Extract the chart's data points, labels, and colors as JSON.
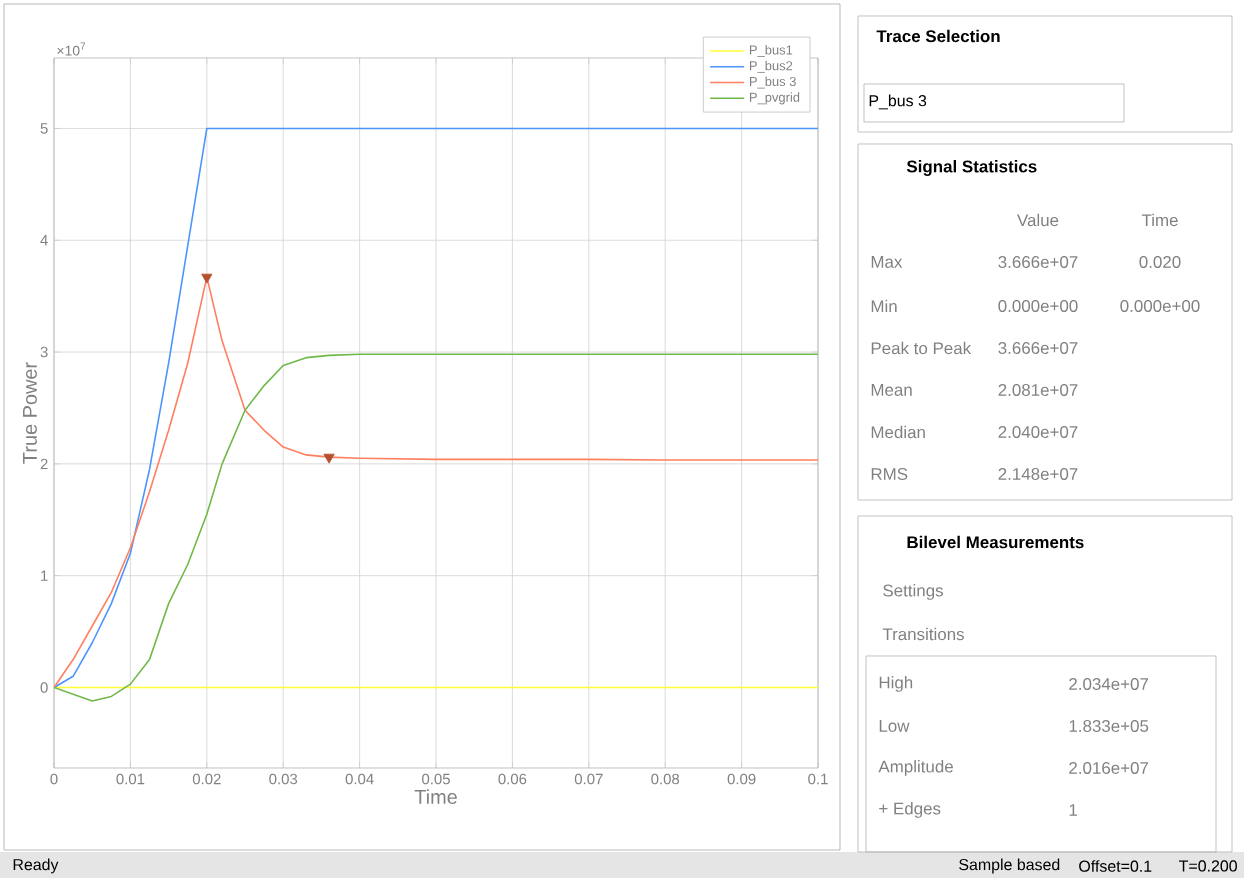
{
  "chart_data": [
    {
      "type": "line",
      "xlabel": "Time",
      "ylabel": "True Power",
      "x": [
        0,
        0.0025,
        0.005,
        0.0075,
        0.01,
        0.0125,
        0.015,
        0.0175,
        0.02,
        0.022,
        0.025,
        0.0275,
        0.03,
        0.033,
        0.036,
        0.04,
        0.05,
        0.06,
        0.07,
        0.08,
        0.09,
        0.1
      ],
      "series": [
        {
          "name": "P_bus1",
          "color": "#ffff33",
          "values": [
            0,
            0,
            0,
            0,
            0,
            0,
            0,
            0,
            0,
            0,
            0,
            0,
            0,
            0,
            0,
            0,
            0,
            0,
            0,
            0,
            0,
            0
          ]
        },
        {
          "name": "P_bus2",
          "color": "#4d94ff",
          "x": [
            0,
            0.0025,
            0.005,
            0.0075,
            0.01,
            0.0125,
            0.015,
            0.0175,
            0.02,
            0.1
          ],
          "values": [
            0,
            0.1,
            0.4,
            0.75,
            1.2,
            1.95,
            2.9,
            3.95,
            5,
            5
          ]
        },
        {
          "name": "P_bus 3",
          "color": "#ff7f5f",
          "values": [
            0,
            0.25,
            0.55,
            0.85,
            1.25,
            1.75,
            2.3,
            2.9,
            3.67,
            3.1,
            2.48,
            2.3,
            2.15,
            2.08,
            2.06,
            2.05,
            2.04,
            2.04,
            2.04,
            2.034,
            2.034,
            2.034
          ]
        },
        {
          "name": "P_pvgrid",
          "color": "#70b84a",
          "values": [
            0,
            -0.06,
            -0.12,
            -0.08,
            0.03,
            0.25,
            0.75,
            1.1,
            1.55,
            2.0,
            2.48,
            2.7,
            2.88,
            2.95,
            2.97,
            2.98,
            2.98,
            2.98,
            2.98,
            2.98,
            2.98,
            2.98
          ]
        },
        {
          "type": "scatter",
          "marker": "triangle",
          "color": "#b5502f",
          "x": [
            0.02,
            0.036
          ],
          "values": [
            3.67,
            2.06
          ]
        }
      ],
      "xlim": [
        0,
        0.1
      ],
      "ylim": [
        -0.72,
        5.63
      ],
      "xticks": [
        0,
        0.01,
        0.02,
        0.03,
        0.04,
        0.05,
        0.06,
        0.07,
        0.08,
        0.09,
        0.1
      ],
      "yticks": [
        0,
        1,
        2,
        3,
        4,
        5
      ],
      "grid": true,
      "legend": "top right",
      "annotations": [
        "×10$^{7}$"
      ]
    },
    {
      "type": "other",
      "annotations": [
        "Trace Selection",
        "P_bus 3",
        "Signal Statistics",
        "Value",
        "Time",
        "Max",
        "3.666e+07",
        "0.020",
        "Min",
        "0.000e+00",
        "0.000e+00",
        "Peak to Peak",
        "3.666e+07",
        "Mean",
        "2.081e+07",
        "Median",
        "2.040e+07",
        "RMS",
        "2.148e+07",
        "Bilevel Measurements",
        "Settings",
        "Transitions",
        "High",
        "2.034e+07",
        "Low",
        "1.833e+05",
        "Amplitude",
        "2.016e+07",
        "+ Edges",
        "1",
        "Ready",
        "Sample based",
        "Offset=0.1",
        "T=0.200"
      ]
    }
  ]
}
